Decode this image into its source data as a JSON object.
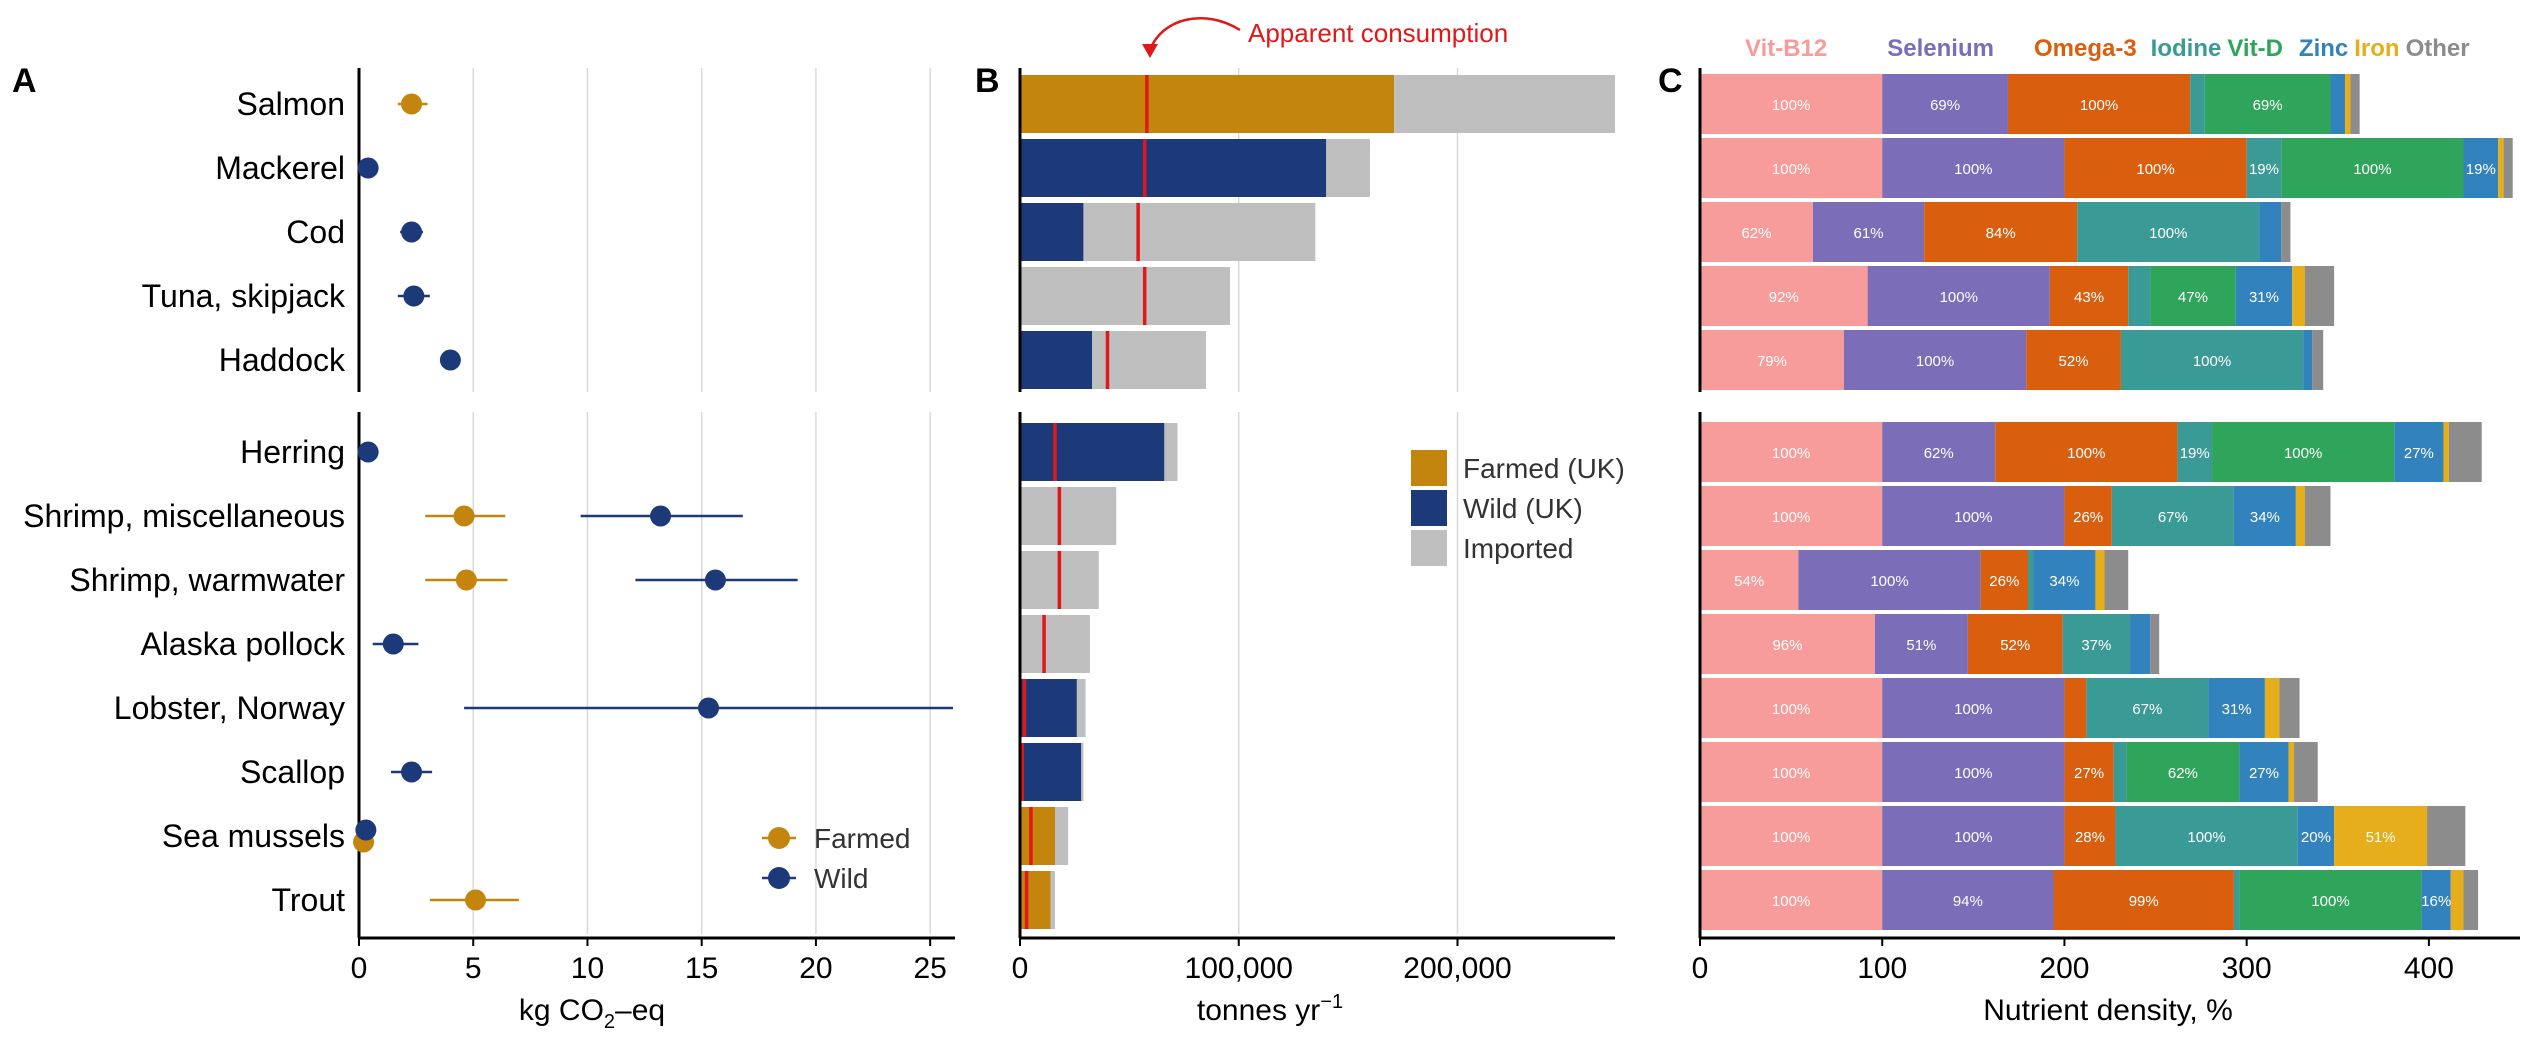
{
  "species": [
    "Salmon",
    "Mackerel",
    "Cod",
    "Tuna, skipjack",
    "Haddock",
    "Herring",
    "Shrimp, miscellaneous",
    "Shrimp, warmwater",
    "Alaska pollock",
    "Lobster, Norway",
    "Scallop",
    "Sea mussels",
    "Trout"
  ],
  "colors": {
    "farmed": "#C4850F",
    "wild": "#1C3A7A",
    "imported": "#BFBFBF",
    "apparent": "#E01818",
    "grid": "#D9D9D9",
    "nutrients": [
      "#F79B9B",
      "#7B6DB8",
      "#D95F0E",
      "#3A9A96",
      "#2EA55A",
      "#3182BD",
      "#E5AE1A",
      "#8C8C8C"
    ]
  },
  "panels": {
    "A": {
      "letter": "A",
      "xlabel_main": "kg CO",
      "xlabel_sub": "2",
      "xlabel_tail": "–eq",
      "xticks": [
        "0",
        "5",
        "10",
        "15",
        "20",
        "25"
      ],
      "legend": [
        "Farmed",
        "Wild"
      ]
    },
    "B": {
      "letter": "B",
      "xlabel_main": "tonnes yr",
      "xlabel_sup": "−1",
      "xticks": [
        "0",
        "100,000",
        "200,000"
      ],
      "legend": [
        "Farmed (UK)",
        "Wild (UK)",
        "Imported"
      ],
      "annotation": "Apparent consumption"
    },
    "C": {
      "letter": "C",
      "xlabel": "Nutrient density, %",
      "xticks": [
        "0",
        "100",
        "200",
        "300",
        "400"
      ],
      "nutrient_names": [
        "Vit-B12",
        "Selenium",
        "Omega-3",
        "Iodine",
        "Vit-D",
        "Zinc",
        "Iron",
        "Other"
      ]
    }
  },
  "chart_data": [
    {
      "type": "scatter",
      "panel": "A",
      "xlabel": "kg CO2–eq",
      "xlim": [
        0,
        26
      ],
      "grid": true,
      "legend_placement": "bottom-right",
      "farmed": [
        {
          "species": "Salmon",
          "x": 2.3,
          "lo": 1.7,
          "hi": 3.0
        },
        {
          "species": "Shrimp, miscellaneous",
          "x": 4.6,
          "lo": 2.9,
          "hi": 6.4
        },
        {
          "species": "Shrimp, warmwater",
          "x": 4.7,
          "lo": 2.9,
          "hi": 6.5
        },
        {
          "species": "Sea mussels",
          "x": 0.2,
          "lo": 0.2,
          "hi": 0.2
        },
        {
          "species": "Trout",
          "x": 5.1,
          "lo": 3.1,
          "hi": 7.0
        }
      ],
      "wild": [
        {
          "species": "Mackerel",
          "x": 0.4,
          "lo": 0.4,
          "hi": 0.4
        },
        {
          "species": "Cod",
          "x": 2.3,
          "lo": 1.8,
          "hi": 2.8
        },
        {
          "species": "Tuna, skipjack",
          "x": 2.4,
          "lo": 1.7,
          "hi": 3.1
        },
        {
          "species": "Haddock",
          "x": 4.0,
          "lo": 4.0,
          "hi": 4.0
        },
        {
          "species": "Herring",
          "x": 0.4,
          "lo": 0.4,
          "hi": 0.4
        },
        {
          "species": "Shrimp, miscellaneous",
          "x": 13.2,
          "lo": 9.7,
          "hi": 16.8
        },
        {
          "species": "Shrimp, warmwater",
          "x": 15.6,
          "lo": 12.1,
          "hi": 19.2
        },
        {
          "species": "Alaska pollock",
          "x": 1.5,
          "lo": 0.6,
          "hi": 2.6
        },
        {
          "species": "Lobster, Norway",
          "x": 15.3,
          "lo": 4.6,
          "hi": 26.0
        },
        {
          "species": "Scallop",
          "x": 2.3,
          "lo": 1.4,
          "hi": 3.2
        },
        {
          "species": "Sea mussels",
          "x": 0.3,
          "lo": 0.3,
          "hi": 0.3
        }
      ]
    },
    {
      "type": "bar",
      "panel": "B",
      "stacked": true,
      "xlabel": "tonnes yr−1",
      "xlim": [
        0,
        272000
      ],
      "grid": true,
      "legend_placement": "right",
      "series": [
        {
          "name": "Farmed (UK)",
          "values": [
            171000,
            0,
            0,
            0,
            0,
            0,
            0,
            0,
            0,
            0,
            0,
            16000,
            14000
          ]
        },
        {
          "name": "Wild (UK)",
          "values": [
            0,
            140000,
            29000,
            0,
            33000,
            66000,
            0,
            0,
            0,
            26000,
            28000,
            0,
            0
          ]
        },
        {
          "name": "Imported",
          "values": [
            101000,
            20000,
            106000,
            96000,
            52000,
            6000,
            44000,
            36000,
            32000,
            4000,
            1000,
            6000,
            2000
          ]
        }
      ],
      "apparent_consumption": [
        58000,
        57000,
        54000,
        57000,
        40000,
        16000,
        18000,
        18000,
        11000,
        2000,
        1000,
        5000,
        3000
      ]
    },
    {
      "type": "bar",
      "panel": "C",
      "stacked": true,
      "xlabel": "Nutrient density, %",
      "xlim": [
        0,
        450
      ],
      "series_names": [
        "Vit-B12",
        "Selenium",
        "Omega-3",
        "Iodine",
        "Vit-D",
        "Zinc",
        "Iron",
        "Other"
      ],
      "rows": [
        {
          "species": "Salmon",
          "values": [
            100,
            69,
            100,
            8,
            69,
            8,
            3,
            5
          ],
          "labels": [
            "100%",
            "69%",
            "100%",
            "",
            "69%",
            "",
            "",
            ""
          ]
        },
        {
          "species": "Mackerel",
          "values": [
            100,
            100,
            100,
            19,
            100,
            19,
            3,
            5
          ],
          "labels": [
            "100%",
            "100%",
            "100%",
            "19%",
            "100%",
            "19%",
            "",
            ""
          ]
        },
        {
          "species": "Cod",
          "values": [
            62,
            61,
            84,
            100,
            0,
            12,
            0,
            5
          ],
          "labels": [
            "62%",
            "61%",
            "84%",
            "100%",
            "",
            "",
            "",
            ""
          ]
        },
        {
          "species": "Tuna, skipjack",
          "values": [
            92,
            100,
            43,
            12,
            47,
            31,
            7,
            16
          ],
          "labels": [
            "92%",
            "100%",
            "43%",
            "",
            "47%",
            "31%",
            "",
            ""
          ]
        },
        {
          "species": "Haddock",
          "values": [
            79,
            100,
            52,
            100,
            0,
            5,
            0,
            6
          ],
          "labels": [
            "79%",
            "100%",
            "52%",
            "100%",
            "",
            "",
            "",
            ""
          ]
        },
        {
          "species": "Herring",
          "values": [
            100,
            62,
            100,
            19,
            100,
            27,
            3,
            18
          ],
          "labels": [
            "100%",
            "62%",
            "100%",
            "19%",
            "100%",
            "27%",
            "",
            ""
          ]
        },
        {
          "species": "Shrimp, miscellaneous",
          "values": [
            100,
            100,
            26,
            67,
            0,
            34,
            5,
            14
          ],
          "labels": [
            "100%",
            "100%",
            "26%",
            "67%",
            "",
            "34%",
            "",
            ""
          ]
        },
        {
          "species": "Shrimp, warmwater",
          "values": [
            54,
            100,
            26,
            3,
            0,
            34,
            5,
            13
          ],
          "labels": [
            "54%",
            "100%",
            "26%",
            "",
            "",
            "34%",
            "",
            ""
          ]
        },
        {
          "species": "Alaska pollock",
          "values": [
            96,
            51,
            52,
            37,
            0,
            11,
            0,
            5
          ],
          "labels": [
            "96%",
            "51%",
            "52%",
            "37%",
            "",
            "",
            "",
            ""
          ]
        },
        {
          "species": "Lobster, Norway",
          "values": [
            100,
            100,
            12,
            67,
            0,
            31,
            8,
            11
          ],
          "labels": [
            "100%",
            "100%",
            "",
            "67%",
            "",
            "31%",
            "",
            ""
          ]
        },
        {
          "species": "Scallop",
          "values": [
            100,
            100,
            27,
            7,
            62,
            27,
            3,
            13
          ],
          "labels": [
            "100%",
            "100%",
            "27%",
            "",
            "62%",
            "27%",
            "",
            ""
          ]
        },
        {
          "species": "Sea mussels",
          "values": [
            100,
            100,
            28,
            100,
            0,
            20,
            51,
            21
          ],
          "labels": [
            "100%",
            "100%",
            "28%",
            "100%",
            "",
            "20%",
            "51%",
            ""
          ]
        },
        {
          "species": "Trout",
          "values": [
            100,
            94,
            99,
            3,
            100,
            16,
            7,
            8
          ],
          "labels": [
            "100%",
            "94%",
            "99%",
            "",
            "100%",
            "16%",
            "",
            ""
          ]
        }
      ]
    }
  ]
}
